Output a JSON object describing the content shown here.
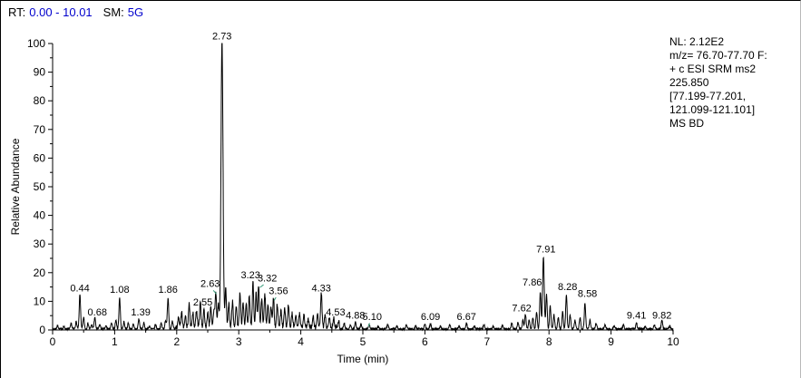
{
  "header": {
    "rt_label": "RT:",
    "rt_value": "0.00 - 10.01",
    "sm_label": "SM:",
    "sm_value": "5G"
  },
  "info_panel": {
    "lines": [
      "NL: 2.12E2",
      "m/z= 76.70-77.70 F:",
      "+ c ESI SRM ms2",
      "225.850",
      "[77.199-77.201,",
      "121.099-121.101]",
      "MS BD"
    ]
  },
  "colors": {
    "value_text": "#0000cd",
    "trace": "#000000",
    "axis": "#000000",
    "connector": "#3a9d7c"
  },
  "chart_data": {
    "type": "line",
    "title": "",
    "xlabel": "Time (min)",
    "ylabel": "Relative Abundance",
    "xlim": [
      0,
      10
    ],
    "ylim": [
      0,
      100
    ],
    "x_ticks": [
      0,
      1,
      2,
      3,
      4,
      5,
      6,
      7,
      8,
      9,
      10
    ],
    "y_ticks": [
      0,
      10,
      20,
      30,
      40,
      50,
      60,
      70,
      80,
      90,
      100
    ],
    "grid": false,
    "legend": "none",
    "peak_width": 0.011,
    "noise": {
      "base": 0.7,
      "dense_region": [
        1.98,
        4.62
      ],
      "dense_extra": 1.3,
      "seed": 7
    },
    "labeled_peaks": [
      {
        "rt": 0.44,
        "height": 12
      },
      {
        "rt": 0.68,
        "height": 4
      },
      {
        "rt": 1.08,
        "height": 11
      },
      {
        "rt": 1.39,
        "height": 3.5
      },
      {
        "rt": 1.86,
        "height": 11
      },
      {
        "rt": 2.55,
        "height": 7
      },
      {
        "rt": 2.63,
        "height": 12
      },
      {
        "rt": 2.73,
        "height": 100
      },
      {
        "rt": 3.23,
        "height": 16
      },
      {
        "rt": 3.32,
        "height": 15
      },
      {
        "rt": 3.56,
        "height": 10
      },
      {
        "rt": 4.33,
        "height": 12
      },
      {
        "rt": 4.53,
        "height": 3
      },
      {
        "rt": 4.88,
        "height": 2.5
      },
      {
        "rt": 5.1,
        "height": 1.5
      },
      {
        "rt": 6.09,
        "height": 2
      },
      {
        "rt": 6.67,
        "height": 2
      },
      {
        "rt": 7.62,
        "height": 5
      },
      {
        "rt": 7.86,
        "height": 13
      },
      {
        "rt": 7.91,
        "height": 25
      },
      {
        "rt": 8.28,
        "height": 12
      },
      {
        "rt": 8.58,
        "height": 9
      },
      {
        "rt": 9.41,
        "height": 2
      },
      {
        "rt": 9.82,
        "height": 3
      }
    ],
    "peak_labels": [
      {
        "text": "0.44",
        "x": 0.44,
        "y": 13.5
      },
      {
        "text": "0.68",
        "x": 0.72,
        "y": 5
      },
      {
        "text": "1.08",
        "x": 1.08,
        "y": 13
      },
      {
        "text": "1.39",
        "x": 1.42,
        "y": 5
      },
      {
        "text": "1.86",
        "x": 1.86,
        "y": 13
      },
      {
        "text": "2.55",
        "x": 2.42,
        "y": 8.5
      },
      {
        "text": "2.63",
        "x": 2.54,
        "y": 15,
        "conn": [
          2.59,
          13.8,
          2.64,
          12.6
        ]
      },
      {
        "text": "2.73",
        "x": 2.73,
        "y": 101.5
      },
      {
        "text": "3.23",
        "x": 3.19,
        "y": 18
      },
      {
        "text": "3.32",
        "x": 3.46,
        "y": 17,
        "conn": [
          3.4,
          15.8,
          3.34,
          14.8
        ]
      },
      {
        "text": "3.56",
        "x": 3.64,
        "y": 12.5,
        "conn": [
          3.6,
          11.4,
          3.57,
          10.3
        ]
      },
      {
        "text": "4.33",
        "x": 4.33,
        "y": 13.5
      },
      {
        "text": "4.53",
        "x": 4.56,
        "y": 5
      },
      {
        "text": "4.88",
        "x": 4.88,
        "y": 4
      },
      {
        "text": "5.10",
        "x": 5.15,
        "y": 3.5,
        "conn": [
          5.11,
          2.4,
          5.09,
          1.2
        ]
      },
      {
        "text": "6.09",
        "x": 6.09,
        "y": 3.5
      },
      {
        "text": "6.67",
        "x": 6.67,
        "y": 3.5
      },
      {
        "text": "7.62",
        "x": 7.56,
        "y": 6.5
      },
      {
        "text": "7.86",
        "x": 7.73,
        "y": 15.5
      },
      {
        "text": "7.91",
        "x": 7.95,
        "y": 27
      },
      {
        "text": "8.28",
        "x": 8.3,
        "y": 14
      },
      {
        "text": "8.58",
        "x": 8.62,
        "y": 11.5
      },
      {
        "text": "9.41",
        "x": 9.41,
        "y": 4
      },
      {
        "text": "9.82",
        "x": 9.82,
        "y": 4
      }
    ],
    "trace_peaks": [
      [
        0.08,
        1.2
      ],
      [
        0.18,
        0.8
      ],
      [
        0.3,
        1.8
      ],
      [
        0.38,
        2.5
      ],
      [
        0.44,
        12
      ],
      [
        0.5,
        4
      ],
      [
        0.57,
        2
      ],
      [
        0.63,
        1.5
      ],
      [
        0.68,
        4
      ],
      [
        0.76,
        1.5
      ],
      [
        0.86,
        1
      ],
      [
        0.95,
        2
      ],
      [
        1.02,
        3
      ],
      [
        1.08,
        11
      ],
      [
        1.15,
        2.5
      ],
      [
        1.22,
        2
      ],
      [
        1.3,
        1.5
      ],
      [
        1.39,
        3.5
      ],
      [
        1.47,
        2
      ],
      [
        1.56,
        1
      ],
      [
        1.66,
        1.5
      ],
      [
        1.75,
        2
      ],
      [
        1.82,
        3
      ],
      [
        1.86,
        11
      ],
      [
        1.93,
        2.5
      ],
      [
        2.03,
        3
      ],
      [
        2.08,
        5
      ],
      [
        2.14,
        4
      ],
      [
        2.2,
        8
      ],
      [
        2.26,
        5
      ],
      [
        2.32,
        6
      ],
      [
        2.38,
        9
      ],
      [
        2.44,
        6
      ],
      [
        2.5,
        5
      ],
      [
        2.55,
        7
      ],
      [
        2.6,
        6
      ],
      [
        2.63,
        12
      ],
      [
        2.67,
        8
      ],
      [
        2.73,
        100,
        0.016
      ],
      [
        2.79,
        14
      ],
      [
        2.84,
        8
      ],
      [
        2.9,
        9
      ],
      [
        2.96,
        7
      ],
      [
        3.02,
        12
      ],
      [
        3.07,
        9
      ],
      [
        3.12,
        8
      ],
      [
        3.17,
        11
      ],
      [
        3.23,
        16
      ],
      [
        3.28,
        12
      ],
      [
        3.32,
        15
      ],
      [
        3.37,
        10
      ],
      [
        3.42,
        12
      ],
      [
        3.47,
        8
      ],
      [
        3.52,
        7
      ],
      [
        3.56,
        10
      ],
      [
        3.62,
        8
      ],
      [
        3.68,
        6
      ],
      [
        3.74,
        7
      ],
      [
        3.8,
        8
      ],
      [
        3.86,
        5
      ],
      [
        3.92,
        4
      ],
      [
        3.98,
        5
      ],
      [
        4.05,
        4
      ],
      [
        4.12,
        3
      ],
      [
        4.2,
        4
      ],
      [
        4.27,
        5
      ],
      [
        4.33,
        12
      ],
      [
        4.39,
        4
      ],
      [
        4.46,
        3
      ],
      [
        4.53,
        3
      ],
      [
        4.61,
        2
      ],
      [
        4.7,
        2
      ],
      [
        4.8,
        1.5
      ],
      [
        4.88,
        2.5
      ],
      [
        4.97,
        1.5
      ],
      [
        5.1,
        1.5
      ],
      [
        5.25,
        1
      ],
      [
        5.4,
        1.5
      ],
      [
        5.55,
        1
      ],
      [
        5.7,
        1.5
      ],
      [
        5.85,
        1
      ],
      [
        6.0,
        1.5
      ],
      [
        6.09,
        2
      ],
      [
        6.25,
        1
      ],
      [
        6.4,
        1.5
      ],
      [
        6.55,
        1
      ],
      [
        6.67,
        2
      ],
      [
        6.8,
        1
      ],
      [
        6.95,
        1.5
      ],
      [
        7.1,
        1
      ],
      [
        7.25,
        1.5
      ],
      [
        7.4,
        2
      ],
      [
        7.5,
        2.5
      ],
      [
        7.58,
        3
      ],
      [
        7.62,
        5
      ],
      [
        7.68,
        3
      ],
      [
        7.74,
        4
      ],
      [
        7.8,
        6
      ],
      [
        7.86,
        13
      ],
      [
        7.91,
        25,
        0.013
      ],
      [
        7.96,
        12
      ],
      [
        8.02,
        8
      ],
      [
        8.08,
        5
      ],
      [
        8.15,
        4
      ],
      [
        8.22,
        6
      ],
      [
        8.28,
        12
      ],
      [
        8.34,
        5
      ],
      [
        8.42,
        3
      ],
      [
        8.5,
        4
      ],
      [
        8.58,
        9
      ],
      [
        8.66,
        3
      ],
      [
        8.76,
        2
      ],
      [
        8.9,
        1.5
      ],
      [
        9.05,
        1
      ],
      [
        9.2,
        1.5
      ],
      [
        9.41,
        2
      ],
      [
        9.55,
        1
      ],
      [
        9.7,
        1.5
      ],
      [
        9.82,
        3
      ],
      [
        9.95,
        1
      ]
    ]
  }
}
